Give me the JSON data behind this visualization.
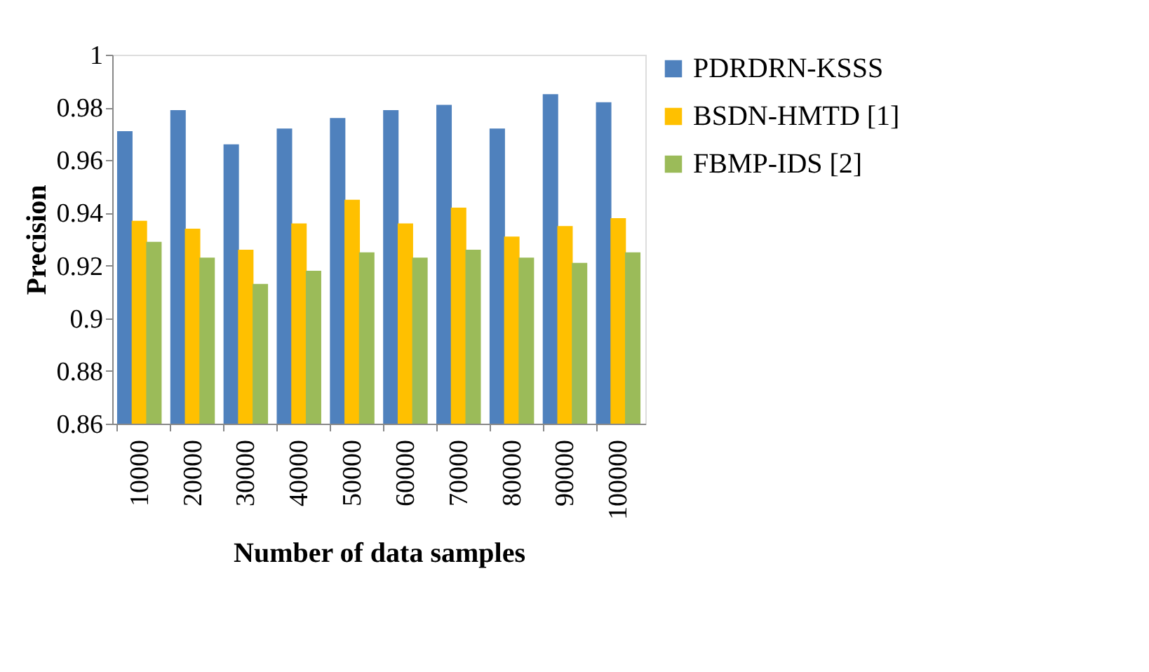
{
  "chart_data": {
    "type": "bar",
    "xlabel": "Number of  data samples",
    "ylabel": "Precision",
    "categories": [
      "10000",
      "20000",
      "30000",
      "40000",
      "50000",
      "60000",
      "70000",
      "80000",
      "90000",
      "100000"
    ],
    "series": [
      {
        "name": "PDRDRN-KSSS",
        "color": "#4f81bd",
        "values": [
          0.971,
          0.979,
          0.966,
          0.972,
          0.976,
          0.979,
          0.981,
          0.972,
          0.985,
          0.982
        ]
      },
      {
        "name": "BSDN-HMTD [1]",
        "color": "#ffc000",
        "values": [
          0.937,
          0.934,
          0.926,
          0.936,
          0.945,
          0.936,
          0.942,
          0.931,
          0.935,
          0.938
        ]
      },
      {
        "name": "FBMP-IDS [2]",
        "color": "#9bbb59",
        "values": [
          0.929,
          0.923,
          0.913,
          0.918,
          0.925,
          0.923,
          0.926,
          0.923,
          0.921,
          0.925
        ]
      }
    ],
    "ylim": [
      0.86,
      1
    ],
    "yticks": [
      0.86,
      0.88,
      0.9,
      0.92,
      0.94,
      0.96,
      0.98,
      1
    ],
    "grid": false,
    "legend": "right"
  }
}
